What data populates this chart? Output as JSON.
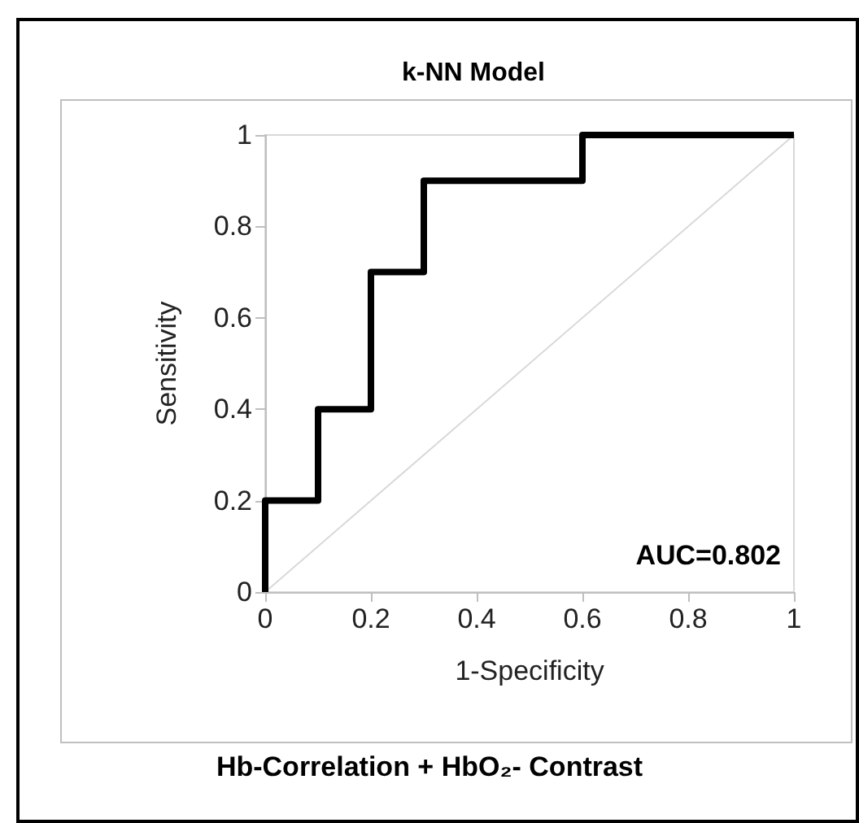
{
  "chart_data": {
    "type": "line",
    "title": "k-NN Model",
    "xlabel": "1-Specificity",
    "ylabel": "Sensitivity",
    "annotations": [
      "AUC=0.802",
      "Hb-Correlation + HbO₂- Contrast"
    ],
    "series": [
      {
        "color": "#000000",
        "x": [
          0,
          0,
          0.1,
          0.1,
          0.2,
          0.2,
          0.3,
          0.3,
          0.6,
          0.6,
          1
        ],
        "values": [
          0,
          0.2,
          0.2,
          0.4,
          0.4,
          0.7,
          0.7,
          0.9,
          0.9,
          1,
          1
        ]
      },
      {
        "color": "#d9d9d9",
        "x": [
          0,
          1
        ],
        "values": [
          0,
          1
        ]
      }
    ],
    "xlim": [
      0,
      1
    ],
    "xticks": [
      0,
      0.2,
      0.4,
      0.6,
      0.8,
      1
    ],
    "ylim": [
      0,
      1
    ],
    "yticks": [
      0,
      0.2,
      0.4,
      0.6,
      0.8,
      1
    ],
    "grid": false,
    "marker": "none",
    "line_style": "solid"
  }
}
